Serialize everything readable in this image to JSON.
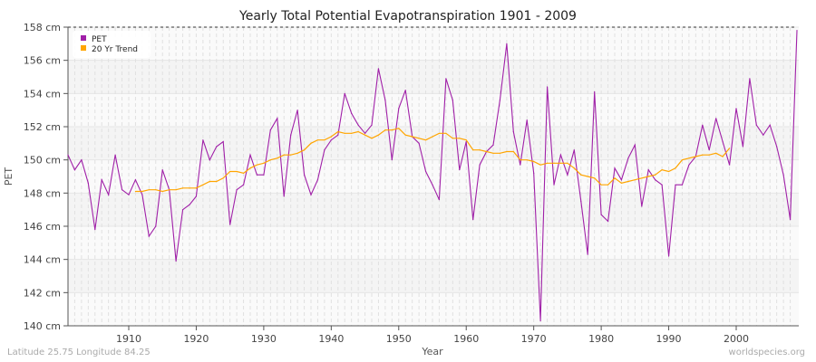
{
  "chart_data": {
    "type": "line",
    "title": "Yearly Total Potential Evapotranspiration 1901 - 2009",
    "xlabel": "Year",
    "ylabel": "PET",
    "xlim": [
      1901,
      2009
    ],
    "ylim": [
      140,
      158
    ],
    "y_unit": "cm",
    "x_ticks": [
      1910,
      1920,
      1930,
      1940,
      1950,
      1960,
      1970,
      1980,
      1990,
      2000
    ],
    "y_ticks": [
      140,
      142,
      144,
      146,
      148,
      150,
      152,
      154,
      156,
      158
    ],
    "y_tick_labels": [
      "140 cm",
      "142 cm",
      "144 cm",
      "146 cm",
      "148 cm",
      "150 cm",
      "152 cm",
      "154 cm",
      "156 cm",
      "158 cm"
    ],
    "grid": true,
    "legend_position": "top-left",
    "series": [
      {
        "name": "PET",
        "color": "#a020a8",
        "x_start": 1901,
        "values": [
          150.3,
          149.4,
          150.0,
          148.6,
          145.8,
          148.8,
          147.9,
          150.3,
          148.2,
          147.9,
          148.8,
          147.9,
          145.4,
          146.0,
          149.4,
          148.2,
          143.9,
          147.0,
          147.3,
          147.8,
          151.2,
          150.0,
          150.8,
          151.1,
          146.1,
          148.2,
          148.5,
          150.3,
          149.1,
          149.1,
          151.8,
          152.5,
          147.8,
          151.5,
          153.0,
          149.1,
          147.9,
          148.8,
          150.6,
          151.2,
          151.5,
          154.0,
          152.8,
          152.1,
          151.6,
          152.1,
          155.5,
          153.6,
          150.0,
          153.1,
          154.2,
          151.4,
          151.0,
          149.3,
          148.5,
          147.6,
          154.9,
          153.6,
          149.4,
          151.1,
          146.4,
          149.7,
          150.5,
          150.9,
          153.6,
          157.0,
          151.7,
          149.7,
          152.4,
          149.2,
          140.3,
          154.4,
          148.5,
          150.3,
          149.1,
          150.6,
          147.5,
          144.3,
          154.1,
          146.7,
          146.3,
          149.5,
          148.8,
          150.1,
          150.9,
          147.2,
          149.4,
          148.8,
          148.5,
          144.2,
          148.5,
          148.5,
          149.7,
          150.2,
          152.1,
          150.6,
          152.5,
          151.1,
          149.7,
          153.1,
          150.8,
          154.9,
          152.1,
          151.5,
          152.1,
          150.8,
          149.1,
          146.4,
          157.8
        ]
      },
      {
        "name": "20 Yr Trend",
        "color": "#ffa500",
        "x_start": 1911,
        "values": [
          148.1,
          148.1,
          148.2,
          148.2,
          148.1,
          148.2,
          148.2,
          148.3,
          148.3,
          148.3,
          148.5,
          148.7,
          148.7,
          148.9,
          149.3,
          149.3,
          149.2,
          149.5,
          149.7,
          149.8,
          150.0,
          150.1,
          150.3,
          150.3,
          150.4,
          150.6,
          151.0,
          151.2,
          151.2,
          151.4,
          151.7,
          151.6,
          151.6,
          151.7,
          151.5,
          151.3,
          151.5,
          151.8,
          151.8,
          151.9,
          151.5,
          151.4,
          151.3,
          151.2,
          151.4,
          151.6,
          151.6,
          151.3,
          151.3,
          151.2,
          150.6,
          150.6,
          150.5,
          150.4,
          150.4,
          150.5,
          150.5,
          150.0,
          150.0,
          149.9,
          149.7,
          149.8,
          149.8,
          149.8,
          149.8,
          149.5,
          149.1,
          149.0,
          148.9,
          148.5,
          148.5,
          148.9,
          148.6,
          148.7,
          148.8,
          148.9,
          149.0,
          149.1,
          149.4,
          149.3,
          149.5,
          150.0,
          150.1,
          150.2,
          150.3,
          150.3,
          150.4,
          150.2,
          150.7
        ]
      }
    ]
  },
  "footer": {
    "location": "Latitude 25.75 Longitude 84.25",
    "source": "worldspecies.org"
  }
}
